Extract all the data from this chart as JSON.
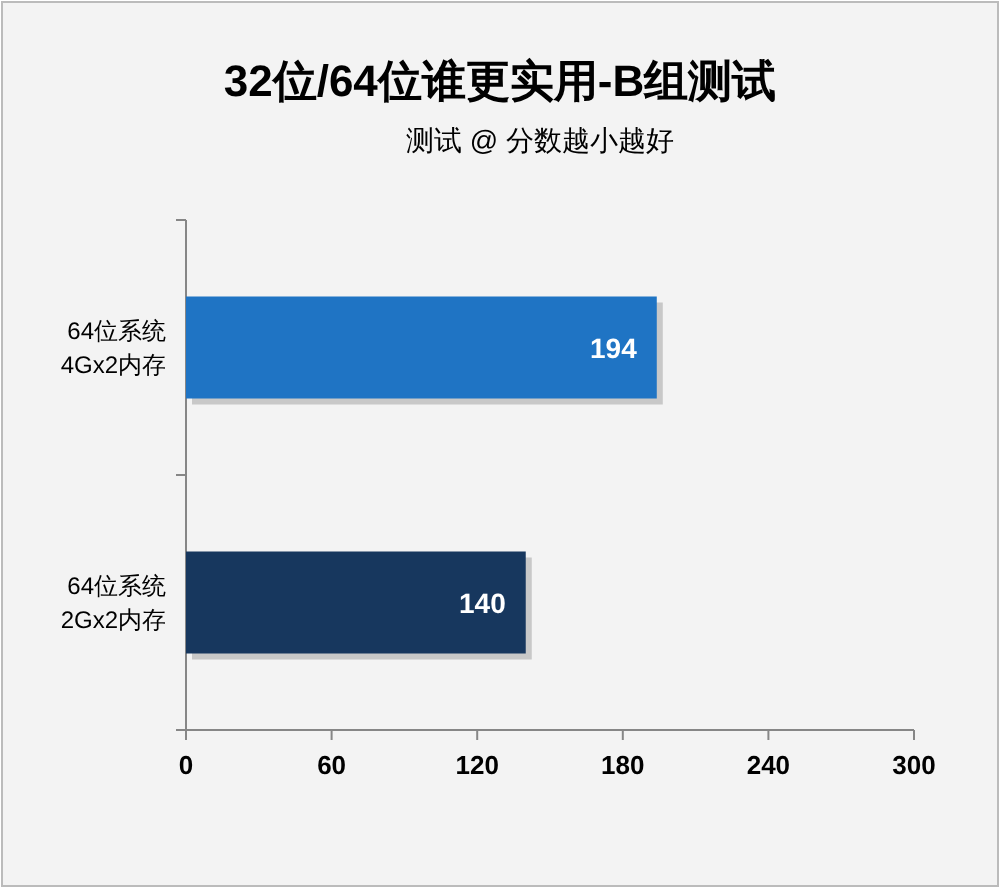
{
  "chart_data": {
    "type": "bar",
    "orientation": "horizontal",
    "title": "32位/64位谁更实用-B组测试",
    "subtitle": "测试 @ 分数越小越好",
    "categories": [
      "64位系统\n4Gx2内存",
      "64位系统\n2Gx2内存"
    ],
    "values": [
      194,
      140
    ],
    "colors": [
      "#1f74c4",
      "#17375e"
    ],
    "xlim": [
      0,
      300
    ],
    "xticks": [
      0,
      60,
      120,
      180,
      240,
      300
    ],
    "data_labels": true,
    "grid": false
  }
}
